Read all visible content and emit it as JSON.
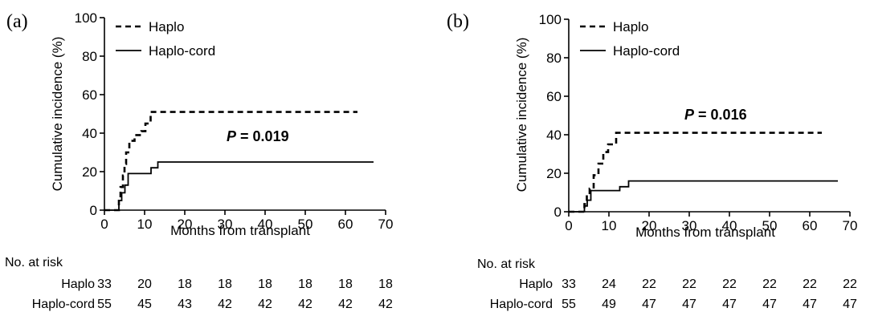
{
  "chart_data": [
    {
      "type": "line",
      "panel_label": "(a)",
      "xlabel": "Months from transplant",
      "ylabel": "Cumulative incidence (%)",
      "xlim": [
        0,
        70
      ],
      "ylim": [
        0,
        100
      ],
      "xticks": [
        0,
        10,
        20,
        30,
        40,
        50,
        60,
        70
      ],
      "yticks": [
        0,
        20,
        40,
        60,
        80,
        100
      ],
      "legend_position": "top-left",
      "p_prefix": "P",
      "p_value": "= 0.019",
      "series": [
        {
          "name": "Haplo",
          "style": "dashed",
          "x": [
            0,
            3,
            3.6,
            4,
            4.6,
            5,
            5.4,
            6.2,
            7.5,
            9.2,
            10.2,
            11.5,
            63
          ],
          "y": [
            0,
            0,
            6,
            12,
            18,
            24,
            30,
            36,
            39,
            41,
            45,
            51,
            51
          ]
        },
        {
          "name": "Haplo-cord",
          "style": "solid",
          "x": [
            0,
            3,
            3.6,
            4.3,
            5.1,
            5.9,
            10.3,
            11.6,
            13.3,
            67
          ],
          "y": [
            0,
            0,
            5,
            9,
            13,
            19,
            19,
            22,
            25,
            25
          ]
        }
      ],
      "risk_table": {
        "title": "No. at risk",
        "rows": [
          {
            "label": "Haplo",
            "values": [
              33,
              20,
              18,
              18,
              18,
              18,
              18,
              18
            ]
          },
          {
            "label": "Haplo-cord",
            "values": [
              55,
              45,
              43,
              42,
              42,
              42,
              42,
              42
            ]
          }
        ]
      }
    },
    {
      "type": "line",
      "panel_label": "(b)",
      "xlabel": "Months from transplant",
      "ylabel": "Cumulative incidence (%)",
      "xlim": [
        0,
        70
      ],
      "ylim": [
        0,
        100
      ],
      "xticks": [
        0,
        10,
        20,
        30,
        40,
        50,
        60,
        70
      ],
      "yticks": [
        0,
        20,
        40,
        60,
        80,
        100
      ],
      "legend_position": "top-left",
      "p_prefix": "P",
      "p_value": "= 0.016",
      "series": [
        {
          "name": "Haplo",
          "style": "dashed",
          "x": [
            0,
            3.3,
            3.9,
            4.5,
            5.2,
            6.2,
            7.4,
            8.6,
            9.8,
            11.8,
            63
          ],
          "y": [
            0,
            0,
            4,
            8,
            12,
            19,
            25,
            31,
            35,
            41,
            41
          ]
        },
        {
          "name": "Haplo-cord",
          "style": "solid",
          "x": [
            0,
            3.3,
            3.9,
            4.6,
            5.5,
            10.8,
            12.7,
            14.9,
            67
          ],
          "y": [
            0,
            0,
            3,
            6,
            11,
            11,
            13,
            16,
            16
          ]
        }
      ],
      "risk_table": {
        "title": "No. at risk",
        "rows": [
          {
            "label": "Haplo",
            "values": [
              33,
              24,
              22,
              22,
              22,
              22,
              22,
              22
            ]
          },
          {
            "label": "Haplo-cord",
            "values": [
              55,
              49,
              47,
              47,
              47,
              47,
              47,
              47
            ]
          }
        ]
      }
    }
  ]
}
